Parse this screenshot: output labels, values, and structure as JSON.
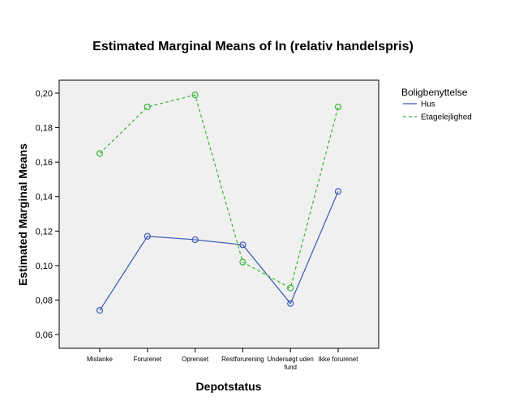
{
  "chart_data": {
    "type": "line",
    "title": "Estimated Marginal Means of ln (relativ handelspris)",
    "xlabel": "Depotstatus",
    "ylabel": "Estimated Marginal Means",
    "ylim": [
      0.055,
      0.21
    ],
    "yticks": [
      0.06,
      0.08,
      0.1,
      0.12,
      0.14,
      0.16,
      0.18,
      0.2
    ],
    "ytick_labels": [
      "0,06",
      "0,08",
      "0,10",
      "0,12",
      "0,14",
      "0,16",
      "0,18",
      "0,20"
    ],
    "categories": [
      [
        "Mistanke"
      ],
      [
        "Forurenet"
      ],
      [
        "Oprenset"
      ],
      [
        "Restforurening"
      ],
      [
        "Undersøgt uden",
        "fund"
      ],
      [
        "Ikke forurenet"
      ]
    ],
    "legend": {
      "title": "Boligbenyttelse",
      "placement": "right"
    },
    "grid": false,
    "series": [
      {
        "name": "Hus",
        "color": "#3a5bb5",
        "dash": "solid",
        "values": [
          0.074,
          0.117,
          0.115,
          0.112,
          0.078,
          0.143
        ]
      },
      {
        "name": "Etagelejlighed",
        "color": "#3cb43c",
        "dash": "dashed",
        "values": [
          0.165,
          0.192,
          0.199,
          0.102,
          0.087,
          0.192
        ]
      }
    ]
  }
}
